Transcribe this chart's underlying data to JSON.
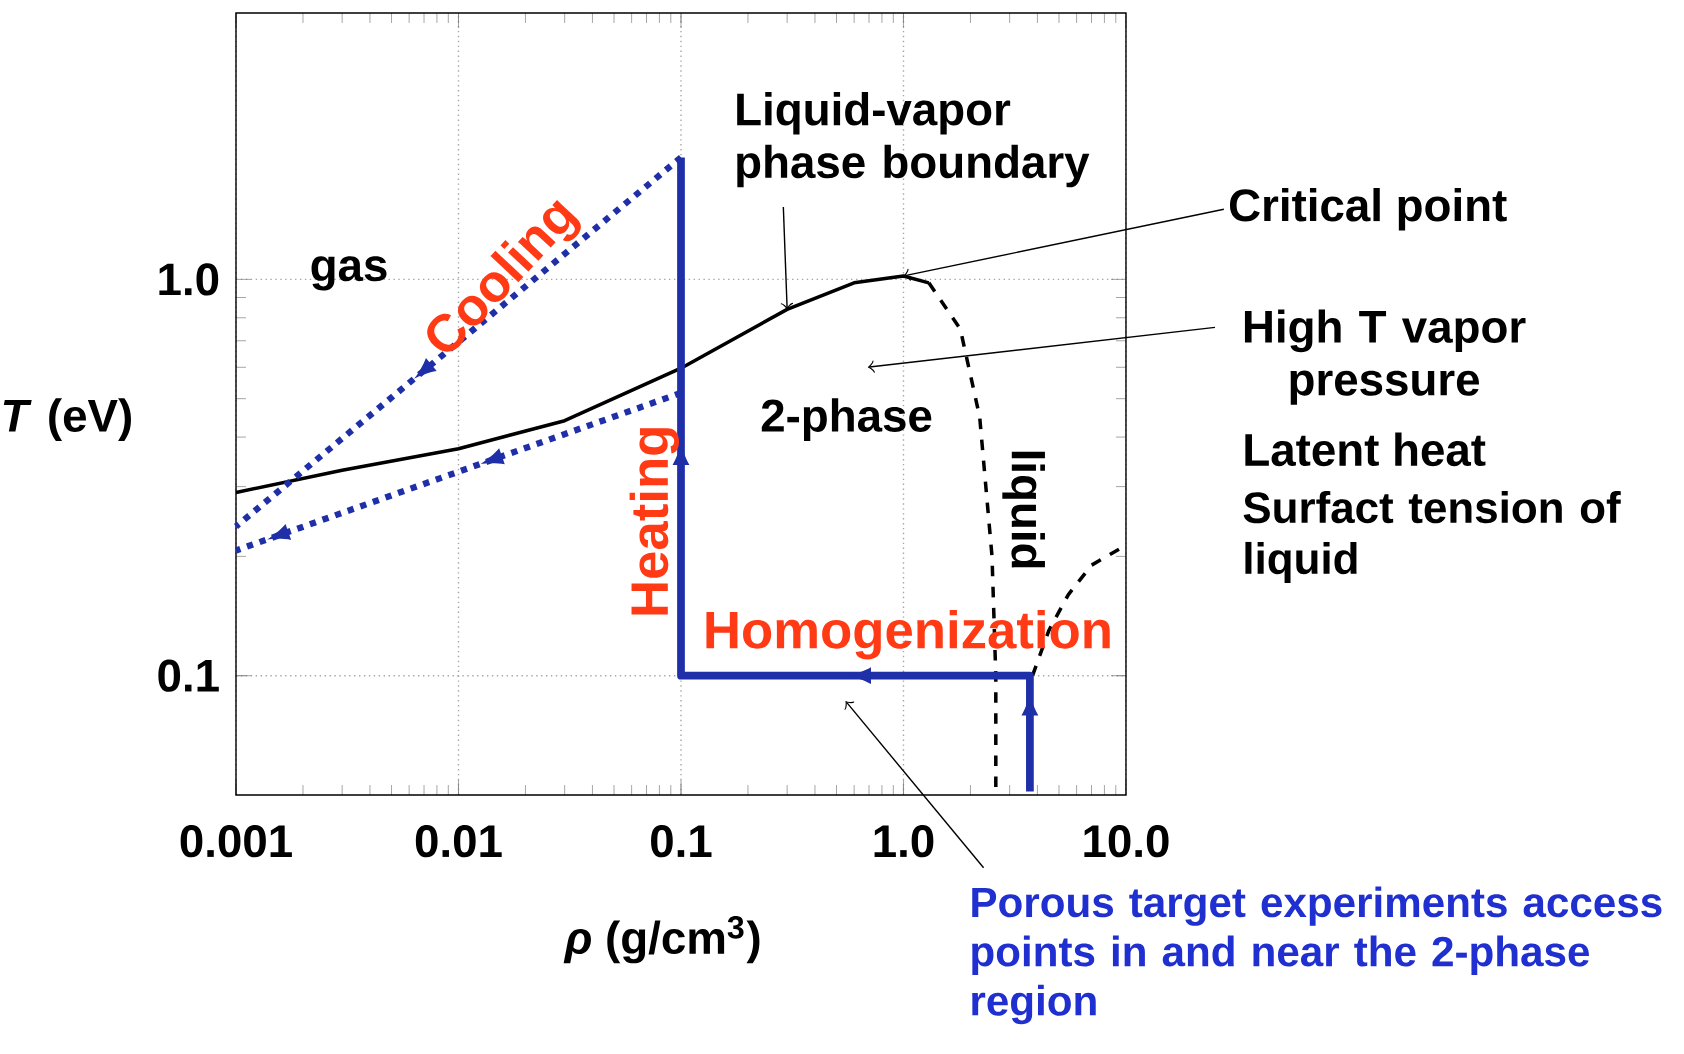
{
  "chart_data": {
    "type": "line",
    "xlabel": "*ρ*  (g/cm$^{3}$)",
    "ylabel": "*T* (eV)",
    "log": "xy",
    "grid": true,
    "xlim": [
      0.001,
      10
    ],
    "ylim": [
      0.05,
      4.7
    ],
    "xticks": [
      0.001,
      0.01,
      0.1,
      {
        "value": 1,
        "label": "1.0"
      },
      {
        "value": 10,
        "label": "10.0"
      }
    ],
    "yticks": [
      0.1,
      {
        "value": 1,
        "label": "1.0"
      }
    ],
    "series": [
      {
        "color": "#000000",
        "line_style": "solid",
        "x": [
          0.001,
          0.003,
          0.01,
          0.03,
          0.1,
          0.3,
          0.6,
          1.0,
          1.3
        ],
        "values": [
          0.29,
          0.33,
          0.374,
          0.44,
          0.597,
          0.84,
          0.98,
          1.02,
          0.98
        ]
      },
      {
        "color": "#000000",
        "line_style": "dashed",
        "x": [
          1.3,
          1.8,
          2.2,
          2.5,
          2.6,
          2.6
        ],
        "values": [
          0.98,
          0.75,
          0.45,
          0.2,
          0.1,
          0.051
        ]
      },
      {
        "color": "#000000",
        "line_style": "dashed",
        "x": [
          3.8,
          4.5,
          5.5,
          7,
          9.5
        ],
        "values": [
          0.1,
          0.13,
          0.16,
          0.19,
          0.21
        ]
      },
      {
        "color": "#1f2fa8",
        "line_style": "solid",
        "x": [
          3.7,
          3.7,
          0.1,
          0.1
        ],
        "values": [
          0.051,
          0.1,
          0.1,
          2.03
        ]
      },
      {
        "color": "#1f2fa8",
        "line_style": "dotted",
        "x": [
          0.1,
          0.001
        ],
        "values": [
          2.03,
          0.238
        ]
      },
      {
        "color": "#1f2fa8",
        "line_style": "dotted",
        "x": [
          0.1,
          0.001
        ],
        "values": [
          0.517,
          0.207
        ]
      }
    ],
    "annotations": [
      "gas",
      "Cooling",
      {
        "text": "Liquid-vapor phase boundary",
        "x": 0.3,
        "y": 0.84
      },
      {
        "text": "Critical point",
        "x": 1.0,
        "y": 1.02
      },
      "High T vapor pressure",
      "Latent heat",
      "Surfact tension of liquid",
      "2-phase",
      "liquid",
      "Heating",
      "Homogenization",
      "Porous target experiments access points in and near the 2-phase region"
    ]
  }
}
